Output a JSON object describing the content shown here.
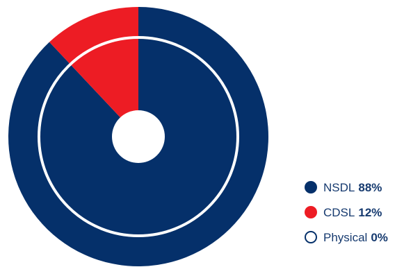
{
  "chart_data": {
    "type": "pie",
    "categories": [
      "NSDL",
      "CDSL",
      "Physical"
    ],
    "values": [
      88,
      12,
      0
    ],
    "value_labels": [
      "88%",
      "12%",
      "0%"
    ],
    "colors": [
      "#05306a",
      "#ed1c24",
      "#ffffff"
    ],
    "legend_placement": "bottom-right",
    "title": "",
    "xlabel": "",
    "ylabel": ""
  },
  "legend": {
    "items": [
      {
        "label": "NSDL",
        "value": "88%",
        "color": "#05306a",
        "style": "filled"
      },
      {
        "label": "CDSL",
        "value": "12%",
        "color": "#ed1c24",
        "style": "filled"
      },
      {
        "label": "Physical",
        "value": "0%",
        "color": "#05306a",
        "style": "outline"
      }
    ]
  }
}
